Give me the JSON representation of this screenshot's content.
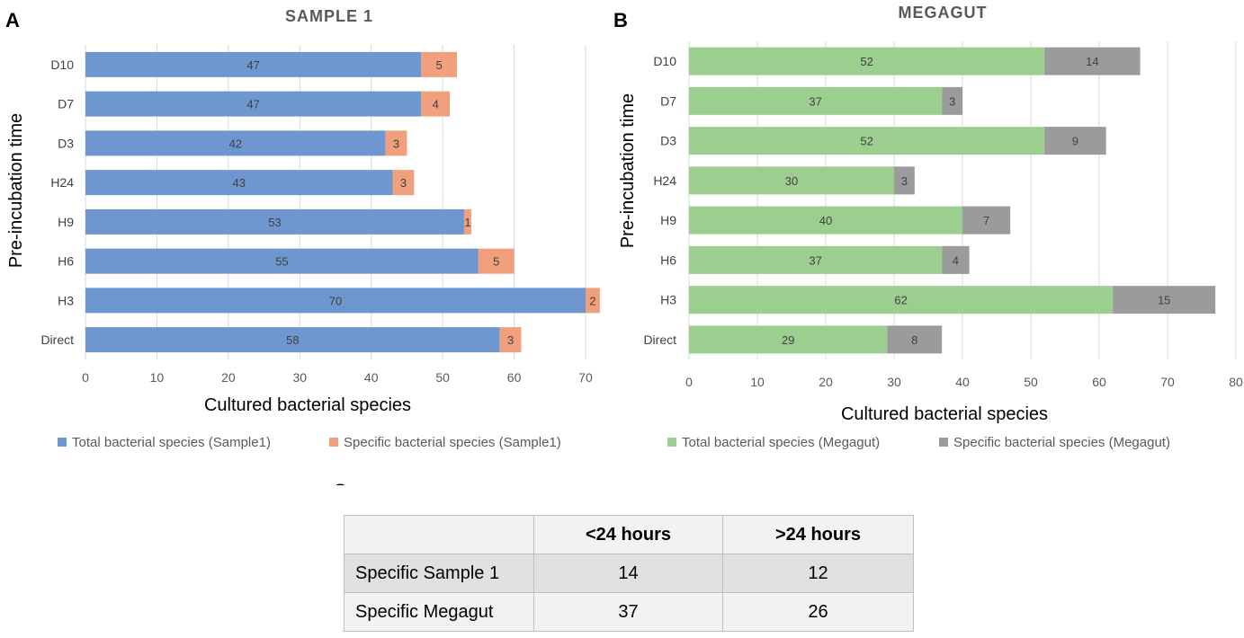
{
  "panels": {
    "a": "A",
    "b": "B",
    "c": "C"
  },
  "chart_data": [
    {
      "type": "bar",
      "orientation": "horizontal",
      "stacked": true,
      "title": "SAMPLE 1",
      "xlabel": "Cultured bacterial species",
      "ylabel": "Pre-incubation time",
      "xlim": [
        0,
        70
      ],
      "xticks": [
        0,
        10,
        20,
        30,
        40,
        50,
        60,
        70
      ],
      "categories": [
        "D10",
        "D7",
        "D3",
        "H24",
        "H9",
        "H6",
        "H3",
        "Direct"
      ],
      "series": [
        {
          "name": "Total bacterial species (Sample1)",
          "color": "#6f97cf",
          "values": [
            47,
            47,
            42,
            43,
            53,
            55,
            70,
            58
          ]
        },
        {
          "name": "Specific bacterial species (Sample1)",
          "color": "#f0a07c",
          "values": [
            5,
            4,
            3,
            3,
            1,
            5,
            2,
            3
          ]
        }
      ],
      "legend": "bottom",
      "grid": true
    },
    {
      "type": "bar",
      "orientation": "horizontal",
      "stacked": true,
      "title": "MEGAGUT",
      "xlabel": "Cultured bacterial species",
      "ylabel": "Pre-incubation time",
      "xlim": [
        0,
        80
      ],
      "xticks": [
        0,
        10,
        20,
        30,
        40,
        50,
        60,
        70,
        80
      ],
      "categories": [
        "D10",
        "D7",
        "D3",
        "H24",
        "H9",
        "H6",
        "H3",
        "Direct"
      ],
      "series": [
        {
          "name": "Total bacterial species (Megagut)",
          "color": "#9ccf8f",
          "values": [
            52,
            37,
            52,
            30,
            40,
            37,
            62,
            29
          ]
        },
        {
          "name": "Specific bacterial species (Megagut)",
          "color": "#9b9b9b",
          "values": [
            14,
            3,
            9,
            3,
            7,
            4,
            15,
            8
          ]
        }
      ],
      "legend": "bottom",
      "grid": true
    }
  ],
  "table": {
    "headers": [
      "",
      "<24 hours",
      ">24 hours"
    ],
    "rows": [
      {
        "label": "Specific Sample 1",
        "values": [
          "14",
          "12"
        ]
      },
      {
        "label": "Specific Megagut",
        "values": [
          "37",
          "26"
        ]
      }
    ]
  }
}
